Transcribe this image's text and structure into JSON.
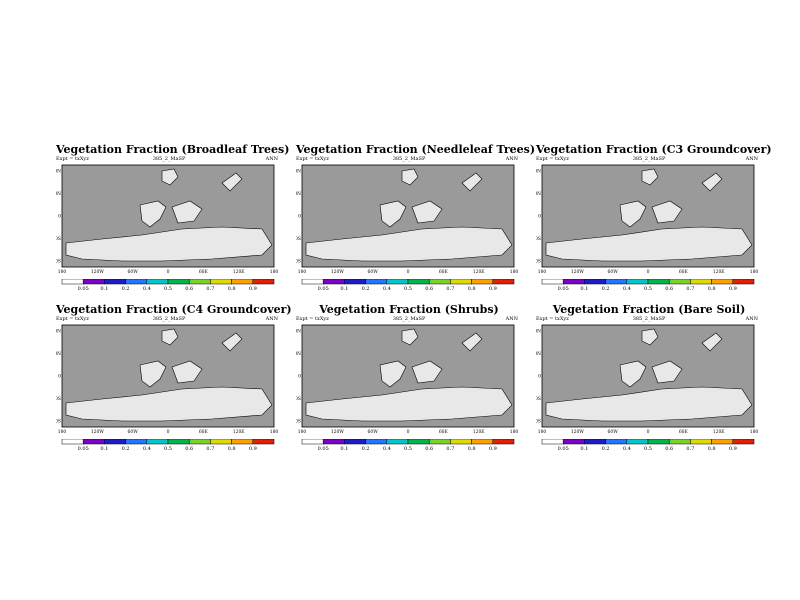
{
  "panels": [
    {
      "title": "Vegetation Fraction (Broadleaf Trees)",
      "meta_left": "Expt = txXyz",
      "meta_center": "385_2_MaSP",
      "meta_right": "ANN"
    },
    {
      "title": "Vegetation Fraction (Needleleaf Trees)",
      "meta_left": "Expt = txXyz",
      "meta_center": "385_2_MaSP",
      "meta_right": "ANN"
    },
    {
      "title": "Vegetation Fraction (C3 Groundcover)",
      "meta_left": "Expt = txXyz",
      "meta_center": "385_2_MaSP",
      "meta_right": "ANN"
    },
    {
      "title": "Vegetation Fraction (C4 Groundcover)",
      "meta_left": "Expt = txXyz",
      "meta_center": "385_2_MaSP",
      "meta_right": "ANN"
    },
    {
      "title": "Vegetation Fraction (Shrubs)",
      "meta_left": "Expt = txXyz",
      "meta_center": "385_2_MaSP",
      "meta_right": "ANN"
    },
    {
      "title": "Vegetation Fraction (Bare Soil)",
      "meta_left": "Expt = txXyz",
      "meta_center": "385_2_MaSP",
      "meta_right": "ANN"
    }
  ],
  "chart_data": {
    "type": "heatmap",
    "y_ticks": [
      "80N",
      "40N",
      "0",
      "40S",
      "80S"
    ],
    "x_ticks": [
      "180",
      "120W",
      "60W",
      "0",
      "60E",
      "120E",
      "180"
    ],
    "colorbar": {
      "labels": [
        "0.05",
        "0.1",
        "0.2",
        "0.4",
        "0.5",
        "0.6",
        "0.7",
        "0.8",
        "0.9"
      ],
      "colors": [
        "#ffffff",
        "#7b00c8",
        "#1c1cc8",
        "#1e78ff",
        "#00c8c8",
        "#00b450",
        "#78d228",
        "#dcdc00",
        "#ffa000",
        "#e61e00"
      ]
    },
    "background_color": "#9a9a9a",
    "land_color": "#e8e8e8"
  }
}
